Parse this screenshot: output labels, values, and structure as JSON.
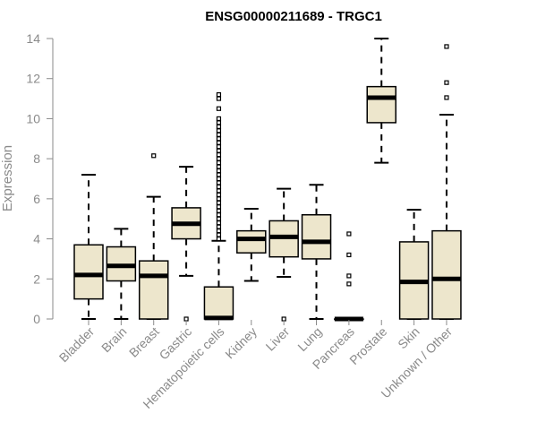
{
  "chart_data": {
    "type": "boxplot",
    "title": "ENSG00000211689 - TRGC1",
    "xlabel": "",
    "ylabel": "Expression",
    "ylim": [
      0,
      14
    ],
    "yticks": [
      0,
      2,
      4,
      6,
      8,
      10,
      12,
      14
    ],
    "grid": false,
    "colors": {
      "box_fill": "#ede6cc",
      "stroke": "#000000",
      "axis": "#8a8a8a"
    },
    "categories": [
      "Bladder",
      "Brain",
      "Breast",
      "Gastric",
      "Hematopoietic cells",
      "Kidney",
      "Liver",
      "Lung",
      "Pancreas",
      "Prostate",
      "Skin",
      "Unknown / Other"
    ],
    "boxes": [
      {
        "category": "Bladder",
        "whisker_low": 0,
        "q1": 1.0,
        "median": 2.2,
        "q3": 3.7,
        "whisker_high": 7.2,
        "outliers": []
      },
      {
        "category": "Brain",
        "whisker_low": 0,
        "q1": 1.9,
        "median": 2.65,
        "q3": 3.6,
        "whisker_high": 4.5,
        "outliers": []
      },
      {
        "category": "Breast",
        "whisker_low": 0,
        "q1": 0,
        "median": 2.15,
        "q3": 2.9,
        "whisker_high": 6.1,
        "outliers": [
          8.15
        ]
      },
      {
        "category": "Gastric",
        "whisker_low": 2.15,
        "q1": 4.0,
        "median": 4.75,
        "q3": 5.55,
        "whisker_high": 7.6,
        "outliers": [
          0
        ]
      },
      {
        "category": "Hematopoietic cells",
        "whisker_low": 0,
        "q1": 0,
        "median": 0.05,
        "q3": 1.6,
        "whisker_high": 3.9,
        "outliers": [
          4.0,
          4.2,
          4.4,
          4.6,
          4.8,
          5.0,
          5.2,
          5.4,
          5.6,
          5.8,
          6.0,
          6.2,
          6.4,
          6.6,
          6.8,
          7.0,
          7.2,
          7.4,
          7.6,
          7.8,
          8.0,
          8.2,
          8.4,
          8.6,
          8.8,
          9.0,
          9.2,
          9.4,
          9.6,
          9.8,
          10.0,
          10.5,
          11.0,
          11.2
        ]
      },
      {
        "category": "Kidney",
        "whisker_low": 1.9,
        "q1": 3.3,
        "median": 4.0,
        "q3": 4.4,
        "whisker_high": 5.5,
        "outliers": []
      },
      {
        "category": "Liver",
        "whisker_low": 2.1,
        "q1": 3.1,
        "median": 4.1,
        "q3": 4.9,
        "whisker_high": 6.5,
        "outliers": [
          0
        ]
      },
      {
        "category": "Lung",
        "whisker_low": 0,
        "q1": 3.0,
        "median": 3.85,
        "q3": 5.2,
        "whisker_high": 6.7,
        "outliers": []
      },
      {
        "category": "Pancreas",
        "whisker_low": 0,
        "q1": 0,
        "median": 0,
        "q3": 0,
        "whisker_high": 0,
        "outliers": [
          1.75,
          2.15,
          3.2,
          4.25
        ]
      },
      {
        "category": "Prostate",
        "whisker_low": 7.8,
        "q1": 9.8,
        "median": 11.05,
        "q3": 11.6,
        "whisker_high": 14.0,
        "outliers": []
      },
      {
        "category": "Skin",
        "whisker_low": 0,
        "q1": 0,
        "median": 1.85,
        "q3": 3.85,
        "whisker_high": 5.45,
        "outliers": []
      },
      {
        "category": "Unknown / Other",
        "whisker_low": 0,
        "q1": 0,
        "median": 2.0,
        "q3": 4.4,
        "whisker_high": 10.2,
        "outliers": [
          11.05,
          11.8,
          13.6
        ]
      }
    ]
  }
}
